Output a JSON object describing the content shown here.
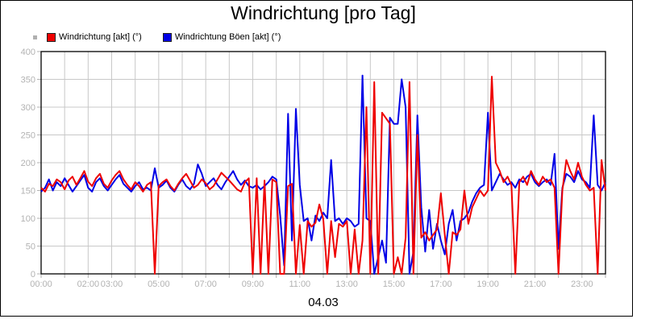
{
  "title": "Windrichtung [pro Tag]",
  "footer_date": "04.03",
  "colors": {
    "series_akt": "#ee0000",
    "series_boen": "#0000e6",
    "grid": "#c8c8c8",
    "axis_frame": "#000000",
    "tick_label": "#b2b2b2",
    "legend_bullet": "#b0b0b0"
  },
  "chart_data": {
    "type": "line",
    "title": "Windrichtung [pro Tag]",
    "footer_label": "04.03",
    "xlabel": "",
    "ylabel": "",
    "ylim": [
      0,
      400
    ],
    "y_tick_interval": 50,
    "y_tick_labels": [
      "0",
      "50",
      "100",
      "150",
      "200",
      "250",
      "300",
      "350",
      "400"
    ],
    "x_range_hours": [
      0,
      24
    ],
    "x_grid_interval_hours": 1,
    "x_labeled_ticks": [
      {
        "hour": 0,
        "label": "00:00"
      },
      {
        "hour": 2,
        "label": "02:00"
      },
      {
        "hour": 3,
        "label": "03:00"
      },
      {
        "hour": 5,
        "label": "05:00"
      },
      {
        "hour": 7,
        "label": "07:00"
      },
      {
        "hour": 9,
        "label": "09:00"
      },
      {
        "hour": 11,
        "label": "11:00"
      },
      {
        "hour": 13,
        "label": "13:00"
      },
      {
        "hour": 15,
        "label": "15:00"
      },
      {
        "hour": 17,
        "label": "17:00"
      },
      {
        "hour": 19,
        "label": "19:00"
      },
      {
        "hour": 21,
        "label": "21:00"
      },
      {
        "hour": 23,
        "label": "23:00"
      }
    ],
    "grid": true,
    "legend_position": "top-left",
    "sample_interval_minutes": 10,
    "series": [
      {
        "name": "Windrichtung [akt] (°)",
        "color": "#ee0000",
        "values": [
          155,
          148,
          162,
          158,
          170,
          165,
          152,
          168,
          175,
          160,
          172,
          185,
          166,
          158,
          172,
          180,
          162,
          155,
          168,
          178,
          185,
          170,
          160,
          152,
          165,
          158,
          148,
          160,
          165,
          0,
          158,
          165,
          170,
          158,
          150,
          162,
          172,
          180,
          168,
          155,
          160,
          170,
          163,
          152,
          158,
          170,
          182,
          175,
          168,
          160,
          152,
          148,
          165,
          172,
          0,
          172,
          0,
          168,
          0,
          170,
          165,
          0,
          0,
          158,
          162,
          0,
          88,
          0,
          95,
          85,
          92,
          125,
          98,
          0,
          95,
          30,
          90,
          85,
          95,
          0,
          80,
          0,
          60,
          300,
          0,
          345,
          0,
          290,
          280,
          270,
          0,
          30,
          0,
          65,
          345,
          0,
          250,
          65,
          75,
          60,
          70,
          80,
          145,
          70,
          0,
          75,
          70,
          80,
          150,
          90,
          120,
          135,
          150,
          140,
          150,
          355,
          200,
          185,
          165,
          175,
          160,
          0,
          165,
          175,
          160,
          185,
          170,
          160,
          175,
          165,
          170,
          155,
          0,
          150,
          205,
          185,
          170,
          200,
          175,
          160,
          150,
          155,
          0,
          205,
          150
        ]
      },
      {
        "name": "Windrichtung Böen [akt] (°)",
        "color": "#0000e6",
        "values": [
          148,
          155,
          170,
          150,
          165,
          158,
          172,
          160,
          148,
          158,
          168,
          178,
          155,
          148,
          165,
          172,
          158,
          150,
          160,
          170,
          178,
          162,
          155,
          148,
          158,
          165,
          152,
          155,
          150,
          190,
          155,
          160,
          168,
          155,
          148,
          160,
          170,
          158,
          152,
          162,
          197,
          180,
          158,
          165,
          172,
          160,
          152,
          165,
          175,
          185,
          170,
          160,
          168,
          158,
          155,
          160,
          152,
          158,
          165,
          175,
          170,
          105,
          15,
          288,
          60,
          297,
          160,
          95,
          100,
          60,
          105,
          95,
          110,
          100,
          205,
          95,
          100,
          90,
          100,
          95,
          85,
          90,
          357,
          100,
          95,
          0,
          30,
          60,
          20,
          281,
          270,
          270,
          350,
          300,
          0,
          40,
          285,
          120,
          40,
          115,
          45,
          90,
          60,
          35,
          90,
          115,
          60,
          95,
          100,
          110,
          130,
          145,
          155,
          160,
          290,
          150,
          165,
          180,
          170,
          160,
          165,
          155,
          170,
          165,
          175,
          180,
          165,
          158,
          165,
          170,
          160,
          216,
          45,
          155,
          180,
          175,
          165,
          185,
          170,
          165,
          155,
          285,
          160,
          150,
          165
        ]
      }
    ]
  }
}
